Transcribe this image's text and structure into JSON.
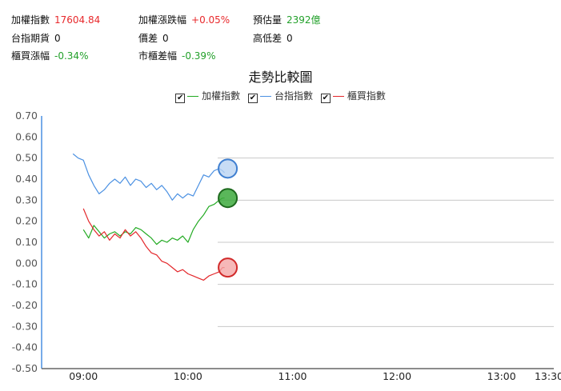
{
  "stats": {
    "taiex_label": "加權指數",
    "taiex_value": "17604.84",
    "taiex_change_label": "加權漲跌幅",
    "taiex_change_value": "+0.05%",
    "est_volume_label": "預估量",
    "est_volume_value": "2392億",
    "futures_label": "台指期貨",
    "futures_value": "0",
    "spread_label": "價差",
    "spread_value": "0",
    "hilo_label": "高低差",
    "hilo_value": "0",
    "otc_change_label": "櫃買漲幅",
    "otc_change_value": "-0.34%",
    "market_otc_diff_label": "市櫃差幅",
    "market_otc_diff_value": "-0.39%"
  },
  "colors": {
    "taiex": "#22aa22",
    "futures": "#4a90e2",
    "otc": "#e3262a",
    "up": "#e8292c",
    "down": "#22a02a",
    "axis": "#4a90e2",
    "grid": "#c8c8c8"
  },
  "chart_data": {
    "type": "line",
    "title": "走勢比較圖",
    "legend": [
      "加權指數",
      "台指指數",
      "櫃買指數"
    ],
    "legend_placement": "top-center",
    "xlabel": "",
    "ylabel": "",
    "ylim": [
      -0.5,
      0.7
    ],
    "yticks": [
      "0.70",
      "0.60",
      "0.50",
      "0.40",
      "0.30",
      "0.20",
      "0.10",
      "0.00",
      "-0.10",
      "-0.20",
      "-0.30",
      "-0.40",
      "-0.50"
    ],
    "xticks": [
      "09:00",
      "10:00",
      "11:00",
      "12:00",
      "13:00",
      "13:30"
    ],
    "grid": "horizontal, right portion",
    "series": [
      {
        "name": "台指指數",
        "values": [
          [
            8.9,
            0.52
          ],
          [
            8.95,
            0.5
          ],
          [
            9.0,
            0.49
          ],
          [
            9.05,
            0.42
          ],
          [
            9.1,
            0.37
          ],
          [
            9.15,
            0.33
          ],
          [
            9.2,
            0.35
          ],
          [
            9.25,
            0.38
          ],
          [
            9.3,
            0.4
          ],
          [
            9.35,
            0.38
          ],
          [
            9.4,
            0.41
          ],
          [
            9.45,
            0.37
          ],
          [
            9.5,
            0.4
          ],
          [
            9.55,
            0.39
          ],
          [
            9.6,
            0.36
          ],
          [
            9.65,
            0.38
          ],
          [
            9.7,
            0.35
          ],
          [
            9.75,
            0.37
          ],
          [
            9.8,
            0.34
          ],
          [
            9.85,
            0.3
          ],
          [
            9.9,
            0.33
          ],
          [
            9.95,
            0.31
          ],
          [
            10.0,
            0.33
          ],
          [
            10.05,
            0.32
          ],
          [
            10.1,
            0.37
          ],
          [
            10.15,
            0.42
          ],
          [
            10.2,
            0.41
          ],
          [
            10.25,
            0.44
          ],
          [
            10.3,
            0.45
          ],
          [
            10.33,
            0.44
          ],
          [
            10.35,
            0.43
          ]
        ]
      },
      {
        "name": "加權指數",
        "values": [
          [
            9.0,
            0.16
          ],
          [
            9.05,
            0.12
          ],
          [
            9.1,
            0.18
          ],
          [
            9.15,
            0.15
          ],
          [
            9.2,
            0.12
          ],
          [
            9.25,
            0.14
          ],
          [
            9.3,
            0.15
          ],
          [
            9.35,
            0.13
          ],
          [
            9.4,
            0.15
          ],
          [
            9.45,
            0.14
          ],
          [
            9.5,
            0.17
          ],
          [
            9.55,
            0.16
          ],
          [
            9.6,
            0.14
          ],
          [
            9.65,
            0.12
          ],
          [
            9.7,
            0.09
          ],
          [
            9.75,
            0.11
          ],
          [
            9.8,
            0.1
          ],
          [
            9.85,
            0.12
          ],
          [
            9.9,
            0.11
          ],
          [
            9.95,
            0.13
          ],
          [
            10.0,
            0.1
          ],
          [
            10.05,
            0.16
          ],
          [
            10.1,
            0.2
          ],
          [
            10.15,
            0.23
          ],
          [
            10.2,
            0.27
          ],
          [
            10.25,
            0.28
          ],
          [
            10.3,
            0.3
          ],
          [
            10.33,
            0.31
          ],
          [
            10.35,
            0.31
          ]
        ]
      },
      {
        "name": "櫃買指數",
        "values": [
          [
            9.0,
            0.26
          ],
          [
            9.05,
            0.2
          ],
          [
            9.1,
            0.16
          ],
          [
            9.15,
            0.13
          ],
          [
            9.2,
            0.15
          ],
          [
            9.25,
            0.11
          ],
          [
            9.3,
            0.14
          ],
          [
            9.35,
            0.12
          ],
          [
            9.4,
            0.16
          ],
          [
            9.45,
            0.13
          ],
          [
            9.5,
            0.15
          ],
          [
            9.55,
            0.12
          ],
          [
            9.6,
            0.08
          ],
          [
            9.65,
            0.05
          ],
          [
            9.7,
            0.04
          ],
          [
            9.75,
            0.01
          ],
          [
            9.8,
            0.0
          ],
          [
            9.85,
            -0.02
          ],
          [
            9.9,
            -0.04
          ],
          [
            9.95,
            -0.03
          ],
          [
            10.0,
            -0.05
          ],
          [
            10.05,
            -0.06
          ],
          [
            10.1,
            -0.07
          ],
          [
            10.15,
            -0.08
          ],
          [
            10.2,
            -0.06
          ],
          [
            10.25,
            -0.05
          ],
          [
            10.3,
            -0.04
          ],
          [
            10.33,
            -0.02
          ],
          [
            10.35,
            -0.02
          ]
        ]
      }
    ],
    "markers": [
      {
        "series": "台指指數",
        "value": 0.45
      },
      {
        "series": "加權指數",
        "value": 0.31
      },
      {
        "series": "櫃買指數",
        "value": -0.02
      }
    ]
  }
}
